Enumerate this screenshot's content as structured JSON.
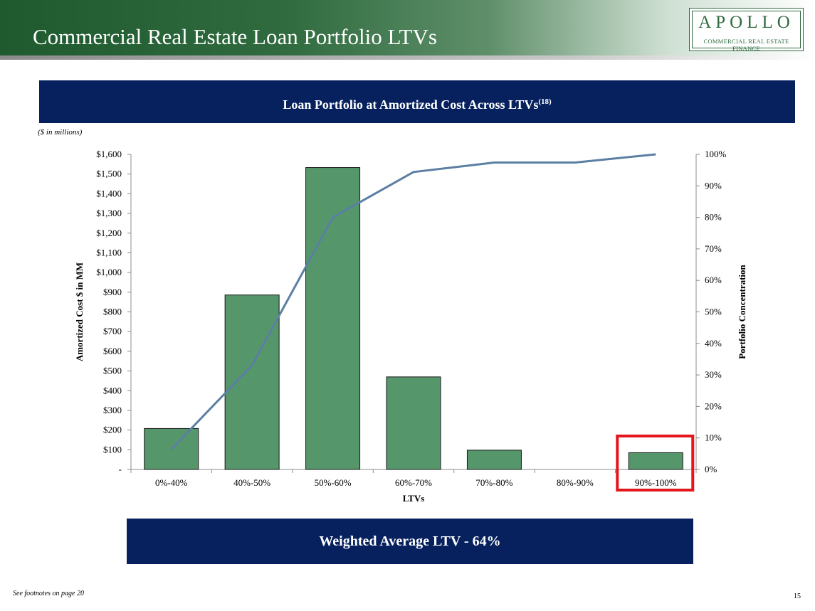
{
  "header": {
    "title": "Commercial Real Estate Loan Portfolio LTVs",
    "logo_word": "APOLLO",
    "logo_sub": "COMMERCIAL REAL ESTATE FINANCE",
    "colors": {
      "header_green": "#1f5a2f",
      "navy": "#06215e"
    }
  },
  "banner": {
    "title": "Loan Portfolio at Amortized Cost Across LTVs",
    "superscript": "(18)"
  },
  "units_note": "($ in millions)",
  "chart_data": {
    "type": "bar",
    "categories": [
      "0%-40%",
      "40%-50%",
      "50%-60%",
      "60%-70%",
      "70%-80%",
      "80%-90%",
      "90%-100%"
    ],
    "xlabel": "LTVs",
    "ylabel": "Amortized Cost $ in MM",
    "y2label": "Portfolio Concentration",
    "ylim": [
      0,
      1600
    ],
    "y2lim": [
      0,
      1
    ],
    "y_ticks": [
      0,
      100,
      200,
      300,
      400,
      500,
      600,
      700,
      800,
      900,
      1000,
      1100,
      1200,
      1300,
      1400,
      1500,
      1600
    ],
    "y_tick_labels": [
      "-",
      "$100",
      "$200",
      "$300",
      "$400",
      "$500",
      "$600",
      "$700",
      "$800",
      "$900",
      "$1,000",
      "$1,100",
      "$1,200",
      "$1,300",
      "$1,400",
      "$1,500",
      "$1,600"
    ],
    "y2_ticks": [
      0,
      0.1,
      0.2,
      0.3,
      0.4,
      0.5,
      0.6,
      0.7,
      0.8,
      0.9,
      1.0
    ],
    "y2_tick_labels": [
      "0%",
      "10%",
      "20%",
      "30%",
      "40%",
      "50%",
      "60%",
      "70%",
      "80%",
      "90%",
      "100%"
    ],
    "series": [
      {
        "type": "bar",
        "axis": "left",
        "color": "#55976a",
        "values": [
          208,
          886,
          1533,
          470,
          98,
          0,
          85
        ]
      },
      {
        "type": "line",
        "axis": "right",
        "color": "#5b7fa3",
        "values": [
          0.064,
          0.331,
          0.8,
          0.944,
          0.974,
          0.974,
          1.0
        ]
      }
    ],
    "highlight_category": "90%-100%",
    "highlight_color": "#e3161b"
  },
  "summary": {
    "label": "Weighted Average LTV -  64%"
  },
  "footer": {
    "note": "See footnotes on page 20",
    "page": "15"
  }
}
